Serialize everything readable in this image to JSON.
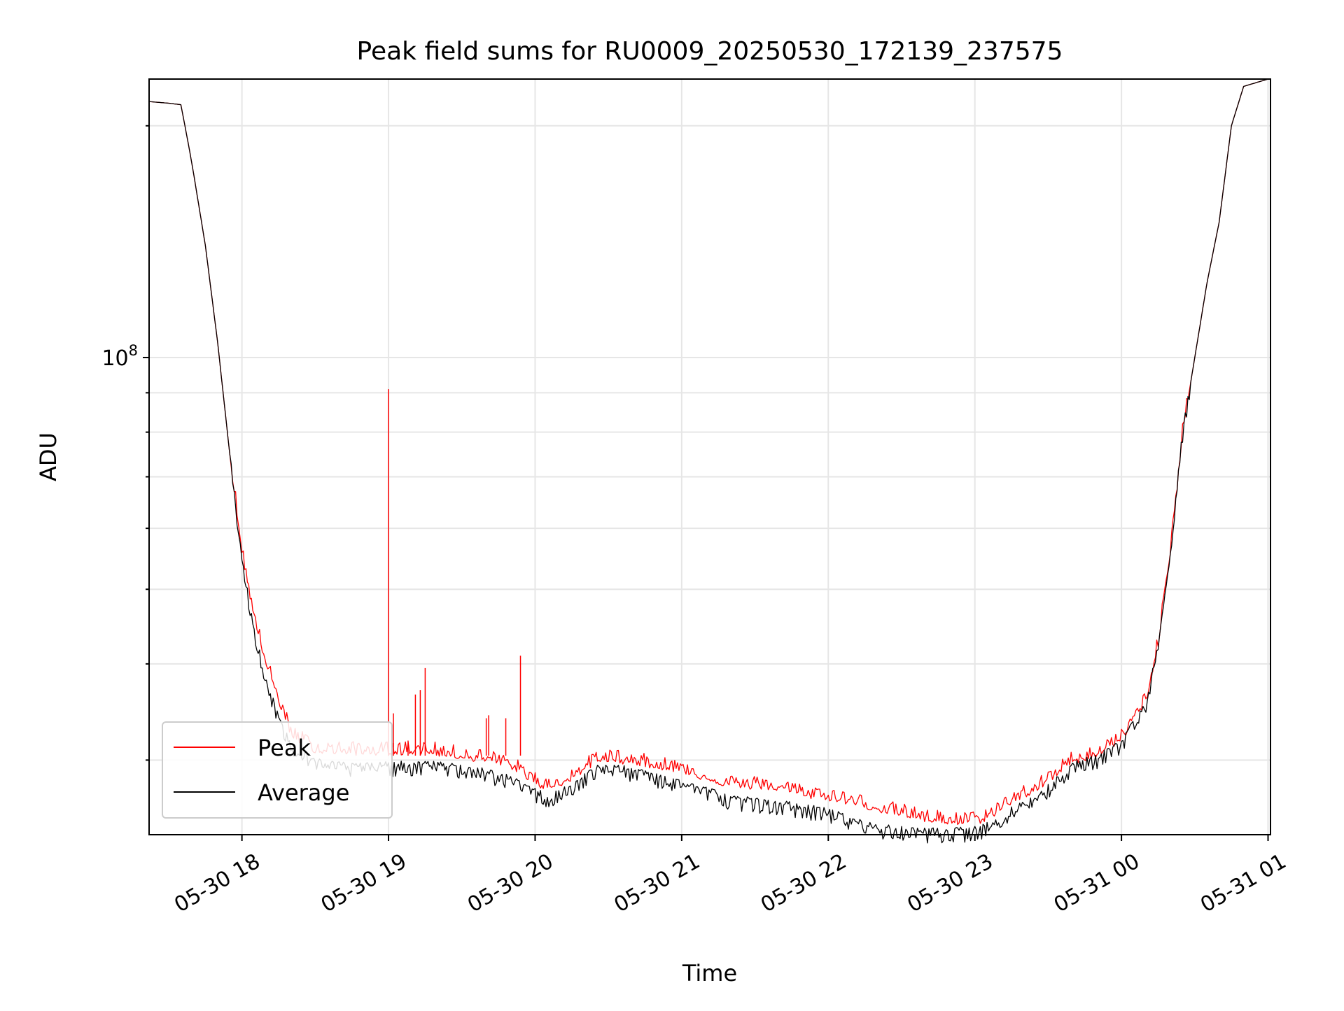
{
  "chart_data": {
    "type": "line",
    "title": "Peak field sums for RU0009_20250530_172139_237575",
    "xlabel": "Time",
    "ylabel": "ADU",
    "y_scale": "log",
    "ylim": [
      24000000,
      230000000
    ],
    "xlim": [
      "2025-05-30 17:22",
      "2025-05-31 01:01"
    ],
    "x_ticks": [
      "2025-05-30 18:00",
      "2025-05-30 19:00",
      "2025-05-30 20:00",
      "2025-05-30 21:00",
      "2025-05-30 22:00",
      "2025-05-30 23:00",
      "2025-05-31 00:00",
      "2025-05-31 01:00"
    ],
    "x_tick_labels": [
      "05-30 18",
      "05-30 19",
      "05-30 20",
      "05-30 21",
      "05-30 22",
      "05-30 23",
      "05-31 00",
      "05-31 01"
    ],
    "y_major_tick_labels": [
      {
        "value": 100000000,
        "base": "10",
        "exp": "8"
      }
    ],
    "y_minor_ticks": [
      30000000,
      40000000,
      50000000,
      60000000,
      70000000,
      80000000,
      90000000,
      200000000
    ],
    "grid": true,
    "legend": {
      "position": "lower-left",
      "entries": [
        "Peak",
        "Average"
      ]
    },
    "colors": {
      "Peak": "#ff0000",
      "Average": "#000000"
    },
    "series": [
      {
        "name": "Average",
        "x": [
          "2025-05-30 17:22",
          "2025-05-30 17:30",
          "2025-05-30 17:35",
          "2025-05-30 17:38",
          "2025-05-30 17:40",
          "2025-05-30 17:45",
          "2025-05-30 17:50",
          "2025-05-30 17:55",
          "2025-05-30 17:58",
          "2025-05-30 18:00",
          "2025-05-30 18:05",
          "2025-05-30 18:10",
          "2025-05-30 18:15",
          "2025-05-30 18:20",
          "2025-05-30 18:30",
          "2025-05-30 18:45",
          "2025-05-30 19:00",
          "2025-05-30 19:15",
          "2025-05-30 19:30",
          "2025-05-30 19:40",
          "2025-05-30 19:50",
          "2025-05-30 20:00",
          "2025-05-30 20:05",
          "2025-05-30 20:15",
          "2025-05-30 20:25",
          "2025-05-30 20:30",
          "2025-05-30 20:40",
          "2025-05-30 21:00",
          "2025-05-30 21:10",
          "2025-05-30 21:20",
          "2025-05-30 21:40",
          "2025-05-30 21:50",
          "2025-05-30 22:00",
          "2025-05-30 22:10",
          "2025-05-30 22:20",
          "2025-05-30 22:30",
          "2025-05-30 22:40",
          "2025-05-30 22:50",
          "2025-05-30 23:00",
          "2025-05-30 23:05",
          "2025-05-30 23:15",
          "2025-05-30 23:20",
          "2025-05-30 23:25",
          "2025-05-30 23:30",
          "2025-05-30 23:40",
          "2025-05-30 23:50",
          "2025-05-31 00:00",
          "2025-05-31 00:10",
          "2025-05-31 00:15",
          "2025-05-31 00:20",
          "2025-05-31 00:25",
          "2025-05-31 00:30",
          "2025-05-31 00:35",
          "2025-05-31 00:40",
          "2025-05-31 00:45",
          "2025-05-31 00:50",
          "2025-05-31 01:00"
        ],
        "values": [
          215000000,
          214000000,
          213000000,
          190000000,
          175000000,
          140000000,
          105000000,
          75000000,
          62000000,
          55000000,
          44000000,
          38000000,
          34000000,
          31500000,
          29800000,
          29400000,
          29500000,
          29600000,
          29300000,
          28900000,
          28300000,
          27300000,
          26800000,
          27700000,
          29200000,
          29400000,
          29000000,
          28000000,
          27400000,
          26700000,
          26300000,
          26000000,
          25700000,
          25000000,
          24500000,
          24300000,
          24200000,
          24200000,
          24300000,
          24600000,
          25800000,
          26300000,
          26700000,
          27600000,
          29500000,
          30200000,
          31600000,
          35500000,
          42000000,
          55000000,
          80000000,
          100000000,
          125000000,
          150000000,
          200000000,
          225000000,
          230000000
        ]
      },
      {
        "name": "Peak",
        "x": [
          "2025-05-30 17:22",
          "2025-05-30 17:30",
          "2025-05-30 17:35",
          "2025-05-30 17:38",
          "2025-05-30 17:40",
          "2025-05-30 17:45",
          "2025-05-30 17:50",
          "2025-05-30 17:55",
          "2025-05-30 17:58",
          "2025-05-30 18:00",
          "2025-05-30 18:05",
          "2025-05-30 18:10",
          "2025-05-30 18:15",
          "2025-05-30 18:20",
          "2025-05-30 18:30",
          "2025-05-30 18:45",
          "2025-05-30 19:00",
          "2025-05-30 19:15",
          "2025-05-30 19:30",
          "2025-05-30 19:40",
          "2025-05-30 19:50",
          "2025-05-30 20:00",
          "2025-05-30 20:05",
          "2025-05-30 20:15",
          "2025-05-30 20:25",
          "2025-05-30 20:30",
          "2025-05-30 20:40",
          "2025-05-30 21:00",
          "2025-05-30 21:10",
          "2025-05-30 21:20",
          "2025-05-30 21:40",
          "2025-05-30 21:50",
          "2025-05-30 22:00",
          "2025-05-30 22:10",
          "2025-05-30 22:20",
          "2025-05-30 22:30",
          "2025-05-30 22:40",
          "2025-05-30 22:50",
          "2025-05-30 23:00",
          "2025-05-30 23:05",
          "2025-05-30 23:15",
          "2025-05-30 23:20",
          "2025-05-30 23:25",
          "2025-05-30 23:30",
          "2025-05-30 23:40",
          "2025-05-30 23:50",
          "2025-05-31 00:00",
          "2025-05-31 00:10",
          "2025-05-31 00:15",
          "2025-05-31 00:20",
          "2025-05-31 00:25",
          "2025-05-31 00:30",
          "2025-05-31 00:35",
          "2025-05-31 00:40",
          "2025-05-31 00:45",
          "2025-05-31 00:50",
          "2025-05-31 01:00"
        ],
        "values": [
          215000000,
          214000000,
          213000000,
          190000000,
          175000000,
          140000000,
          105000000,
          75000000,
          63000000,
          56000000,
          46000000,
          40000000,
          36000000,
          32500000,
          31000000,
          30800000,
          30800000,
          30900000,
          30400000,
          30100000,
          29600000,
          28200000,
          27600000,
          28500000,
          30000000,
          30200000,
          29900000,
          29200000,
          28500000,
          27900000,
          27700000,
          27100000,
          26900000,
          26500000,
          26000000,
          25600000,
          25200000,
          25000000,
          25000000,
          25300000,
          26600000,
          27100000,
          27500000,
          28300000,
          30000000,
          30600000,
          32000000,
          36000000,
          42500000,
          56000000,
          80000000,
          100000000,
          125000000,
          150000000,
          200000000,
          225000000,
          230000000
        ]
      }
    ],
    "spikes": [
      {
        "x": "2025-05-30 19:00",
        "value": 91000000
      },
      {
        "x": "2025-05-30 19:02",
        "value": 34500000
      },
      {
        "x": "2025-05-30 19:08",
        "value": 31800000
      },
      {
        "x": "2025-05-30 19:11",
        "value": 36500000
      },
      {
        "x": "2025-05-30 19:13",
        "value": 37000000
      },
      {
        "x": "2025-05-30 19:15",
        "value": 39500000
      },
      {
        "x": "2025-05-30 19:40",
        "value": 34000000
      },
      {
        "x": "2025-05-30 19:41",
        "value": 34300000
      },
      {
        "x": "2025-05-30 19:48",
        "value": 34000000
      },
      {
        "x": "2025-05-30 19:54",
        "value": 41000000
      }
    ]
  }
}
